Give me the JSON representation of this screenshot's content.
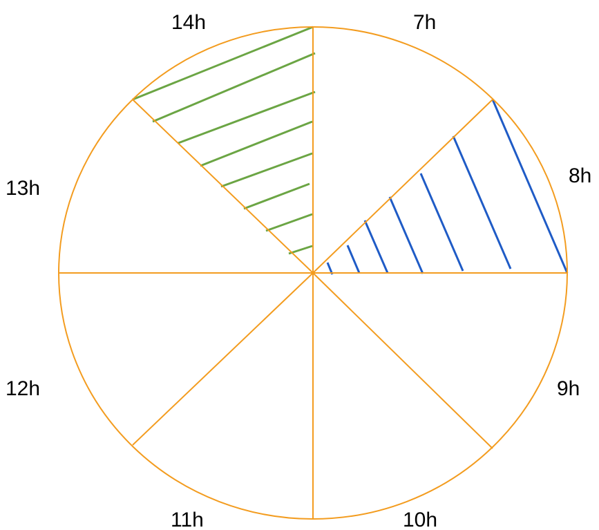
{
  "colors": {
    "outline": "#F39C1F",
    "hatch_green": "#6BA544",
    "hatch_blue": "#1F5BC6",
    "label": "#000000",
    "background": "#FFFFFF"
  },
  "hour_labels": [
    "7h",
    "8h",
    "9h",
    "10h",
    "11h",
    "12h",
    "13h",
    "14h"
  ],
  "hatched_sectors": [
    {
      "hour": "14h",
      "color": "green"
    },
    {
      "hour": "8h",
      "color": "blue"
    }
  ]
}
